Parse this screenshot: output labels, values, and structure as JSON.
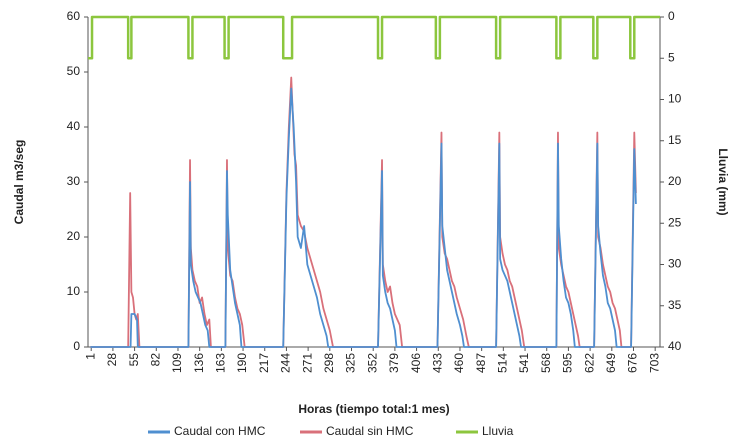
{
  "chart_data": {
    "type": "line",
    "xlabel": "Horas (tiempo total:1 mes)",
    "ylabel": "Caudal m3/seg",
    "y2label": "Lluvia (mm)",
    "xlim": [
      -3,
      709
    ],
    "xticks": [
      1,
      28,
      55,
      82,
      109,
      136,
      163,
      190,
      217,
      244,
      271,
      298,
      325,
      352,
      379,
      406,
      433,
      460,
      487,
      514,
      541,
      568,
      595,
      622,
      649,
      676,
      703
    ],
    "ylim": [
      0,
      60
    ],
    "yticks": [
      0,
      10,
      20,
      30,
      40,
      50,
      60
    ],
    "y2lim": [
      40,
      0
    ],
    "y2ticks": [
      0,
      5,
      10,
      15,
      20,
      25,
      30,
      35,
      40
    ],
    "grid": false,
    "legend": "bottom",
    "series": [
      {
        "name": "Caudal con HMC",
        "color": "#4f8fd0",
        "x": [
          0,
          50,
          51,
          55,
          58,
          59,
          122,
          124,
          125,
          128,
          131,
          134,
          137,
          140,
          143,
          146,
          148,
          168,
          170,
          171,
          174,
          177,
          180,
          183,
          186,
          188,
          240,
          244,
          247,
          250,
          253,
          256,
          258,
          262,
          266,
          270,
          274,
          278,
          282,
          286,
          290,
          294,
          296,
          358,
          363,
          364,
          367,
          370,
          373,
          376,
          379,
          381,
          432,
          437,
          438,
          441,
          444,
          447,
          450,
          453,
          456,
          460,
          463,
          465,
          505,
          509,
          510,
          513,
          516,
          519,
          522,
          525,
          528,
          531,
          534,
          536,
          580,
          582,
          583,
          586,
          589,
          592,
          595,
          598,
          601,
          603,
          627,
          631,
          632,
          635,
          638,
          641,
          644,
          647,
          650,
          653,
          655,
          673,
          677,
          679
        ],
        "values": [
          0,
          0,
          6,
          6,
          5,
          0,
          0,
          30,
          15,
          12,
          10,
          9,
          8,
          6,
          4,
          3,
          0,
          0,
          32,
          24,
          14,
          11,
          8,
          6,
          4,
          0,
          0,
          27,
          38,
          47,
          40,
          30,
          20,
          18,
          22,
          15,
          13,
          11,
          9,
          6,
          4,
          2,
          0,
          0,
          32,
          13,
          10,
          8,
          7,
          5,
          3,
          0,
          0,
          37,
          22,
          18,
          14,
          12,
          10,
          8,
          6,
          4,
          2,
          0,
          0,
          37,
          16,
          14,
          13,
          12,
          10,
          8,
          6,
          4,
          2,
          0,
          0,
          37,
          22,
          16,
          12,
          9,
          8,
          6,
          3,
          0,
          0,
          37,
          22,
          17,
          13,
          11,
          8,
          7,
          5,
          3,
          0,
          0,
          36,
          26
        ]
      },
      {
        "name": "Caudal sin HMC",
        "color": "#d9707a",
        "x": [
          0,
          47,
          49.5,
          51,
          53,
          55,
          57,
          59,
          61,
          122,
          124,
          125,
          127,
          130,
          133,
          136,
          139,
          142,
          145,
          148,
          150,
          168,
          170,
          171,
          174,
          177,
          180,
          183,
          186,
          189,
          192,
          240,
          244,
          247,
          250,
          252,
          254,
          256,
          258,
          262,
          266,
          270,
          274,
          278,
          282,
          286,
          290,
          294,
          298,
          302,
          358,
          363,
          364,
          367,
          370,
          373,
          376,
          379,
          382,
          385,
          388,
          432,
          437,
          438,
          441,
          444,
          447,
          450,
          453,
          456,
          460,
          464,
          468,
          471,
          505,
          509,
          510,
          513,
          516,
          519,
          522,
          525,
          528,
          531,
          534,
          537,
          540,
          580,
          582,
          583,
          586,
          589,
          592,
          595,
          598,
          601,
          604,
          607,
          609,
          627,
          631,
          632,
          635,
          638,
          641,
          644,
          647,
          650,
          653,
          656,
          659,
          661,
          673,
          677,
          679
        ],
        "values": [
          0,
          0,
          28,
          10,
          9,
          6,
          5,
          6,
          0,
          0,
          34,
          18,
          14,
          12,
          11,
          8,
          9,
          6,
          4,
          5,
          0,
          0,
          34,
          18,
          13,
          12,
          9,
          7,
          6,
          4,
          0,
          0,
          28,
          40,
          49,
          42,
          35,
          33,
          24,
          22,
          21,
          18,
          16,
          14,
          12,
          10,
          7,
          5,
          3,
          0,
          0,
          34,
          15,
          12,
          10,
          11,
          8,
          6,
          5,
          4,
          0,
          0,
          39,
          20,
          17,
          16,
          14,
          12,
          11,
          9,
          7,
          5,
          2,
          0,
          0,
          39,
          20,
          17,
          15,
          14,
          12,
          11,
          9,
          7,
          5,
          3,
          0,
          0,
          39,
          18,
          15,
          13,
          11,
          10,
          8,
          6,
          4,
          2,
          0,
          0,
          39,
          20,
          18,
          15,
          13,
          11,
          10,
          8,
          7,
          5,
          3,
          0,
          0,
          39,
          28
        ]
      },
      {
        "name": "Lluvia",
        "color": "#8cc63e",
        "axis": "y2",
        "x": [
          -3,
          2,
          2,
          47,
          47,
          51,
          51,
          122,
          122,
          127,
          127,
          167,
          167,
          172,
          172,
          240,
          240,
          251,
          251,
          358,
          358,
          363,
          363,
          430,
          430,
          435,
          435,
          505,
          505,
          510,
          510,
          580,
          580,
          585,
          585,
          626,
          626,
          631,
          631,
          672,
          672,
          677,
          677,
          709
        ],
        "values": [
          5,
          5,
          0,
          0,
          5,
          5,
          0,
          0,
          5,
          5,
          0,
          0,
          5,
          5,
          0,
          0,
          5,
          5,
          0,
          0,
          5,
          5,
          0,
          0,
          5,
          5,
          0,
          0,
          5,
          5,
          0,
          0,
          5,
          5,
          0,
          0,
          5,
          5,
          0,
          0,
          5,
          5,
          0,
          0
        ]
      }
    ]
  }
}
